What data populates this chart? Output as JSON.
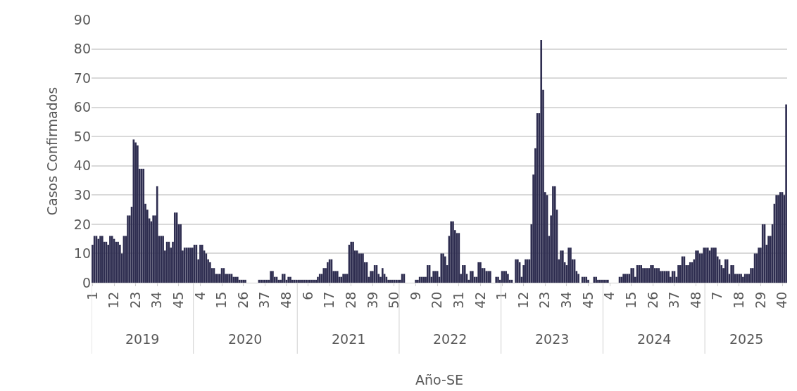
{
  "chart_data": {
    "type": "bar",
    "xlabel": "Año-SE",
    "ylabel": "Casos Confirmados",
    "annotations": [
      "2019",
      "2020",
      "2021",
      "2022",
      "2023",
      "2024",
      "2025"
    ],
    "categories": [
      "1",
      null,
      null,
      null,
      null,
      null,
      null,
      null,
      null,
      null,
      null,
      "12",
      null,
      null,
      null,
      null,
      null,
      null,
      null,
      null,
      null,
      null,
      "23",
      null,
      null,
      null,
      null,
      null,
      null,
      null,
      null,
      null,
      null,
      "34",
      null,
      null,
      null,
      null,
      null,
      null,
      null,
      null,
      null,
      null,
      "45",
      null,
      null,
      null,
      null,
      null,
      null,
      null,
      null,
      null,
      null,
      "4",
      null,
      null,
      null,
      null,
      null,
      null,
      null,
      null,
      null,
      null,
      "15",
      null,
      null,
      null,
      null,
      null,
      null,
      null,
      null,
      null,
      null,
      "26",
      null,
      null,
      null,
      null,
      null,
      null,
      null,
      null,
      null,
      null,
      "37",
      null,
      null,
      null,
      null,
      null,
      null,
      null,
      null,
      null,
      null,
      "48",
      null,
      null,
      null,
      null,
      null,
      null,
      null,
      null,
      null,
      null,
      "6",
      null,
      null,
      null,
      null,
      null,
      null,
      null,
      null,
      null,
      null,
      "17",
      null,
      null,
      null,
      null,
      null,
      null,
      null,
      null,
      null,
      null,
      "28",
      null,
      null,
      null,
      null,
      null,
      null,
      null,
      null,
      null,
      null,
      "39",
      null,
      null,
      null,
      null,
      null,
      null,
      null,
      null,
      null,
      null,
      "50",
      null,
      null,
      null,
      null,
      null,
      null,
      null,
      null,
      null,
      null,
      "9",
      null,
      null,
      null,
      null,
      null,
      null,
      null,
      null,
      null,
      null,
      "20",
      null,
      null,
      null,
      null,
      null,
      null,
      null,
      null,
      null,
      null,
      "31",
      null,
      null,
      null,
      null,
      null,
      null,
      null,
      null,
      null,
      null,
      "42",
      null,
      null,
      null,
      null,
      null,
      null,
      null,
      null,
      null,
      null,
      "1",
      null,
      null,
      null,
      null,
      null,
      null,
      null,
      null,
      null,
      null,
      "12",
      null,
      null,
      null,
      null,
      null,
      null,
      null,
      null,
      null,
      null,
      "23",
      null,
      null,
      null,
      null,
      null,
      null,
      null,
      null,
      null,
      null,
      "34",
      null,
      null,
      null,
      null,
      null,
      null,
      null,
      null,
      null,
      null,
      "45",
      null,
      null,
      null,
      null,
      null,
      null,
      null,
      null,
      null,
      null,
      "4",
      null,
      null,
      null,
      null,
      null,
      null,
      null,
      null,
      null,
      null,
      "15",
      null,
      null,
      null,
      null,
      null,
      null,
      null,
      null,
      null,
      null,
      "26",
      null,
      null,
      null,
      null,
      null,
      null,
      null,
      null,
      null,
      null,
      "37",
      null,
      null,
      null,
      null,
      null,
      null,
      null,
      null,
      null,
      null,
      "48",
      null,
      null,
      null,
      null,
      null,
      null,
      null,
      null,
      null,
      null,
      "7",
      null,
      null,
      null,
      null,
      null,
      null,
      null,
      null,
      null,
      null,
      "18",
      null,
      null,
      null,
      null,
      null,
      null,
      null,
      null,
      null,
      null,
      "29",
      null,
      null,
      null,
      null,
      null,
      null,
      null,
      null,
      null,
      null,
      "40",
      null,
      null
    ],
    "values": [
      13,
      16,
      16,
      15,
      16,
      16,
      14,
      14,
      13,
      16,
      16,
      15,
      14,
      14,
      13,
      10,
      16,
      16,
      23,
      23,
      26,
      49,
      48,
      47,
      39,
      39,
      39,
      27,
      25,
      22,
      21,
      23,
      23,
      33,
      16,
      16,
      16,
      11,
      14,
      14,
      12,
      14,
      24,
      24,
      20,
      20,
      11,
      12,
      12,
      12,
      12,
      12,
      13,
      13,
      8,
      13,
      13,
      11,
      10,
      8,
      7,
      5,
      5,
      3,
      3,
      3,
      5,
      5,
      3,
      3,
      3,
      3,
      2,
      2,
      2,
      1,
      1,
      1,
      1,
      0,
      0,
      0,
      0,
      0,
      0,
      1,
      1,
      1,
      1,
      1,
      1,
      4,
      4,
      2,
      2,
      1,
      1,
      3,
      3,
      1,
      2,
      2,
      1,
      1,
      1,
      1,
      1,
      1,
      1,
      1,
      1,
      1,
      1,
      1,
      1,
      2,
      3,
      3,
      5,
      5,
      7,
      8,
      8,
      4,
      4,
      4,
      2,
      2,
      3,
      3,
      3,
      13,
      14,
      14,
      11,
      11,
      10,
      10,
      10,
      7,
      7,
      2,
      4,
      4,
      6,
      6,
      3,
      2,
      5,
      3,
      2,
      1,
      1,
      1,
      1,
      1,
      1,
      1,
      3,
      3,
      0,
      0,
      0,
      0,
      0,
      1,
      1,
      2,
      2,
      2,
      2,
      6,
      6,
      2,
      4,
      4,
      4,
      2,
      10,
      10,
      9,
      6,
      16,
      21,
      21,
      18,
      17,
      17,
      3,
      6,
      6,
      3,
      1,
      4,
      4,
      2,
      2,
      7,
      7,
      5,
      5,
      4,
      4,
      4,
      0,
      0,
      2,
      2,
      1,
      4,
      4,
      4,
      3,
      1,
      1,
      0,
      8,
      8,
      7,
      2,
      6,
      8,
      8,
      8,
      20,
      37,
      46,
      58,
      58,
      83,
      66,
      31,
      30,
      16,
      23,
      33,
      33,
      25,
      8,
      11,
      11,
      7,
      6,
      12,
      12,
      8,
      8,
      4,
      3,
      0,
      2,
      2,
      2,
      1,
      0,
      0,
      2,
      2,
      1,
      1,
      1,
      1,
      1,
      1,
      0,
      0,
      0,
      0,
      0,
      2,
      2,
      3,
      3,
      3,
      3,
      5,
      5,
      2,
      6,
      6,
      6,
      5,
      5,
      5,
      5,
      6,
      6,
      5,
      5,
      5,
      4,
      4,
      4,
      4,
      4,
      2,
      4,
      4,
      2,
      6,
      6,
      9,
      9,
      6,
      6,
      7,
      7,
      8,
      11,
      11,
      10,
      10,
      12,
      12,
      12,
      11,
      12,
      12,
      12,
      9,
      8,
      6,
      5,
      8,
      8,
      3,
      6,
      6,
      3,
      3,
      3,
      3,
      2,
      3,
      3,
      3,
      5,
      5,
      10,
      10,
      12,
      12,
      20,
      20,
      13,
      16,
      16,
      20,
      27,
      30,
      30,
      31,
      31,
      30,
      61
    ],
    "color": "#2e2d50",
    "ylim": [
      0,
      90
    ],
    "yticks": [
      0,
      10,
      20,
      30,
      40,
      50,
      60,
      70,
      80,
      90
    ],
    "grid": "y"
  }
}
